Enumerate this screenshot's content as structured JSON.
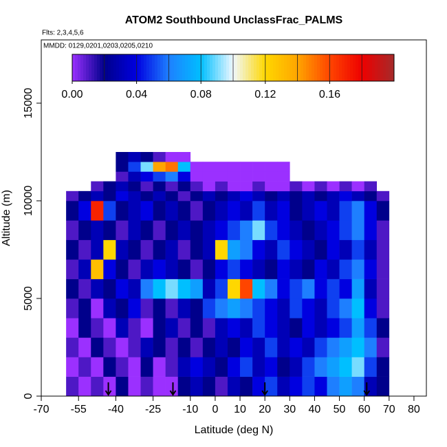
{
  "chart_data": {
    "type": "heatmap",
    "title": "ATOM2 Southbound UnclassFrac_PALMS",
    "subtitle": "Flts: 2,3,4,5,6",
    "annotation": "MMDD: 0129,0201,0203,0205,0210",
    "x_label": "Latitude (deg N)",
    "y_label": "Altitude (m)",
    "xlim": [
      -70,
      85
    ],
    "ylim": [
      0,
      18240
    ],
    "xticks": [
      -70,
      -55,
      -40,
      -25,
      -10,
      0,
      10,
      20,
      30,
      40,
      50,
      60,
      70,
      80
    ],
    "yticks": [
      0,
      5000,
      10000,
      15000
    ],
    "x_edges": [
      -60,
      -55,
      -50,
      -45,
      -40,
      -35,
      -30,
      -25,
      -20,
      -15,
      -10,
      -5,
      0,
      5,
      10,
      15,
      20,
      25,
      30,
      35,
      40,
      45,
      50,
      55,
      60,
      65,
      70
    ],
    "y_edges": [
      0,
      1000,
      2000,
      3000,
      4000,
      5000,
      6000,
      7000,
      8000,
      9000,
      10000,
      10500,
      11000,
      11500,
      12000,
      12500
    ],
    "values": [
      [
        0.01,
        0,
        0.01,
        0,
        0.02,
        0,
        0.01,
        0,
        0,
        0.02,
        0.03,
        0.02,
        0.01,
        0.03,
        0.02,
        0.04,
        0.05,
        0.03,
        0.04,
        0.05,
        0.04,
        0.06,
        0.07,
        0.06,
        0.03,
        0.02
      ],
      [
        0,
        0.01,
        0,
        0.02,
        0.01,
        0,
        0.02,
        0,
        0.01,
        0.03,
        0.04,
        0.03,
        0.02,
        0.04,
        0.05,
        0.03,
        0.04,
        0.02,
        0.03,
        0.05,
        0.06,
        0.07,
        0.08,
        0.09,
        0.05,
        0.02
      ],
      [
        0.01,
        0,
        0.02,
        0.01,
        0,
        0.01,
        0.03,
        0.02,
        0.01,
        0.02,
        0.01,
        0.02,
        0.03,
        0.02,
        0.04,
        0.03,
        0.05,
        0.03,
        0.04,
        0.03,
        0.05,
        0.06,
        0.07,
        0.08,
        0.06,
        0.01
      ],
      [
        0,
        0.02,
        0.01,
        0,
        0.03,
        0.01,
        0,
        0.02,
        0.03,
        0.01,
        0.02,
        0.01,
        0.03,
        0.04,
        0.03,
        0.05,
        0.04,
        0.03,
        0.02,
        0.04,
        0.03,
        0.04,
        0.05,
        0.07,
        0.05,
        0.02
      ],
      [
        0.01,
        0.02,
        0,
        0.03,
        0.02,
        0.04,
        0.01,
        0.02,
        0.01,
        0.03,
        0.02,
        0.05,
        0.06,
        0.07,
        0.06,
        0.05,
        0.04,
        0.03,
        0.05,
        0.04,
        0.03,
        0.05,
        0.06,
        0.08,
        0.04,
        0.01
      ],
      [
        0.02,
        0.01,
        0.03,
        0.02,
        0.04,
        0.03,
        0.06,
        0.08,
        0.09,
        0.08,
        0.07,
        0.03,
        0.05,
        0.12,
        0.16,
        0.08,
        0.06,
        0.04,
        0.05,
        0.06,
        0.04,
        0.05,
        0.04,
        0.07,
        0.03,
        0.01
      ],
      [
        0.01,
        0.03,
        0.13,
        0.04,
        0.02,
        0.01,
        0.03,
        0.04,
        0.03,
        0.02,
        0.01,
        0.02,
        0.04,
        0.05,
        0.04,
        0.03,
        0.02,
        0.04,
        0.03,
        0.02,
        0.04,
        0.03,
        0.05,
        0.06,
        0.04,
        0.01
      ],
      [
        0.02,
        0.01,
        0.03,
        0.12,
        0.03,
        0.02,
        0.01,
        0.02,
        0.03,
        0.01,
        0.02,
        0.03,
        0.12,
        0.07,
        0.06,
        0.04,
        0.03,
        0.05,
        0.04,
        0.03,
        0.02,
        0.04,
        0.03,
        0.05,
        0.03,
        0.01
      ],
      [
        0.01,
        0.02,
        0.03,
        0.02,
        0.01,
        0.03,
        0.02,
        0.01,
        0.02,
        0.03,
        0.02,
        0.03,
        0.04,
        0.05,
        0.06,
        0.09,
        0.05,
        0.04,
        0.03,
        0.02,
        0.03,
        0.04,
        0.05,
        0.06,
        0.04,
        0.01
      ],
      [
        0.02,
        0.04,
        0.17,
        0.05,
        0.02,
        0.03,
        0.04,
        0.02,
        0.03,
        0.02,
        0.01,
        0.02,
        0.03,
        0.04,
        0.03,
        0.05,
        0.03,
        0.04,
        0.02,
        0.03,
        0.04,
        0.03,
        0.05,
        0.06,
        0.04,
        0.02
      ],
      [
        0.01,
        0.02,
        0.03,
        0.02,
        0.04,
        0.03,
        0.02,
        0.03,
        0.02,
        0.01,
        0.02,
        0.03,
        0.02,
        0.03,
        0.04,
        0.03,
        0.02,
        0.03,
        0.02,
        0.03,
        0.02,
        0.03,
        0.04,
        0.03,
        0.02,
        0.01
      ],
      [
        null,
        null,
        0.01,
        0.02,
        0.03,
        0.02,
        0.01,
        0.02,
        0.01,
        0.02,
        0.01,
        0,
        0.01,
        0,
        0,
        0.01,
        0,
        0,
        0.01,
        0,
        0.01,
        0,
        0.01,
        0,
        0.01,
        null
      ],
      [
        null,
        null,
        null,
        null,
        0.01,
        0.03,
        0.04,
        0.05,
        0.06,
        0.04,
        0,
        0,
        0,
        0,
        0,
        0,
        0,
        0,
        null,
        null,
        null,
        null,
        null,
        null,
        null,
        null
      ],
      [
        null,
        null,
        null,
        null,
        0.02,
        0.05,
        0.09,
        0.14,
        0.15,
        0.08,
        0,
        0,
        0,
        0,
        0,
        0,
        0,
        0,
        null,
        null,
        null,
        null,
        null,
        null,
        null,
        null
      ],
      [
        null,
        null,
        null,
        null,
        0.02,
        0.03,
        0.02,
        0.01,
        0,
        0,
        null,
        null,
        null,
        null,
        null,
        null,
        null,
        null,
        null,
        null,
        null,
        null,
        null,
        null,
        null,
        null
      ]
    ],
    "arrows_x": [
      -43,
      -17,
      20,
      61
    ],
    "colorbar": {
      "range": [
        0,
        0.2
      ],
      "colors": [
        "#9b30ff",
        "#00008b",
        "#0000e0",
        "#1e7fff",
        "#00bfff",
        "#f0f8ff",
        "#ffd700",
        "#ffa500",
        "#ff4500",
        "#ee0000",
        "#a52a2a"
      ],
      "ticks": [
        {
          "value": 0,
          "label": "0.00"
        },
        {
          "value": 0.04,
          "label": "0.04"
        },
        {
          "value": 0.08,
          "label": "0.08"
        },
        {
          "value": 0.12,
          "label": "0.12"
        },
        {
          "value": 0.16,
          "label": "0.16"
        }
      ]
    }
  }
}
